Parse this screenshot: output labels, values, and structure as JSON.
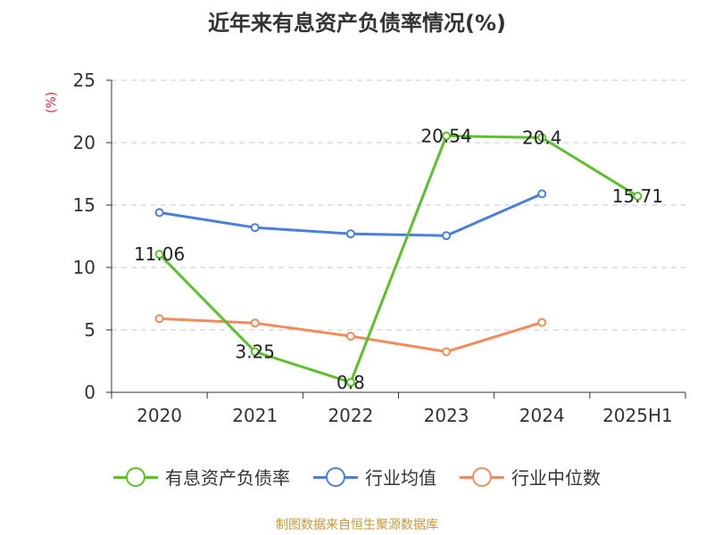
{
  "title": "近年来有息资产负债率情况(%)",
  "unit_label": "(%)",
  "source": "制图数据来自恒生聚源数据库",
  "chart_data": {
    "type": "line",
    "title": "近年来有息资产负债率情况(%)",
    "ylabel": "(%)",
    "xlabel": "",
    "categories": [
      "2020",
      "2021",
      "2022",
      "2023",
      "2024",
      "2025H1"
    ],
    "ylim": [
      0,
      25
    ],
    "yticks": [
      0,
      5,
      10,
      15,
      20,
      25
    ],
    "grid": true,
    "legend_position": "bottom",
    "series": [
      {
        "name": "有息资产负债率",
        "color": "#5ac12a",
        "values": [
          11.06,
          3.25,
          0.8,
          20.54,
          20.4,
          15.71
        ],
        "labels": [
          "11.06",
          "3.25",
          "0.8",
          "20.54",
          "20.4",
          "15.71"
        ]
      },
      {
        "name": "行业均值",
        "color": "#4a7fdb",
        "values": [
          14.4,
          13.2,
          12.7,
          12.55,
          15.9,
          null
        ]
      },
      {
        "name": "行业中位数",
        "color": "#f28b5a",
        "values": [
          5.9,
          5.55,
          4.5,
          3.25,
          5.6,
          null
        ]
      }
    ]
  }
}
